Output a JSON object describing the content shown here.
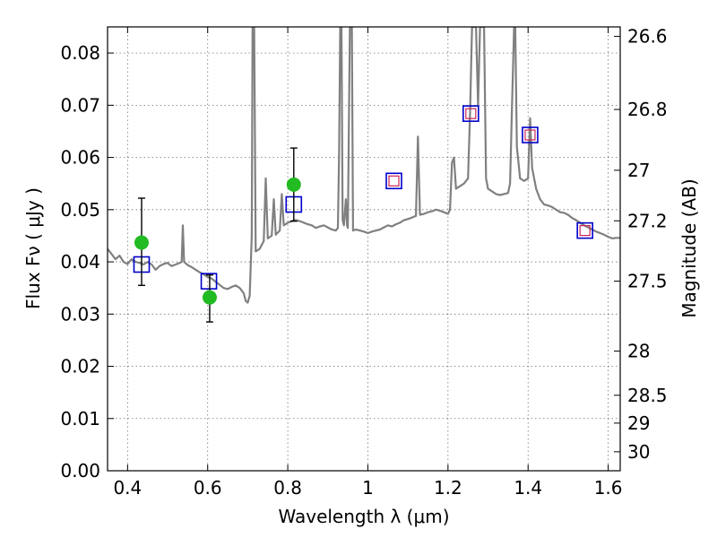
{
  "chart_data": {
    "type": "line",
    "xlabel": "Wavelength  λ (μm)",
    "ylabel": "Flux  Fν  ( μJy )",
    "y2label": "Magnitude (AB)",
    "xlim": [
      0.35,
      1.63
    ],
    "ylim": [
      0.0,
      0.085
    ],
    "grid": true,
    "x_ticks": [
      0.4,
      0.6,
      0.8,
      1.0,
      1.2,
      1.4,
      1.6
    ],
    "x_tick_labels": [
      "0.4",
      "0.6",
      "0.8",
      "1",
      "1.2",
      "1.4",
      "1.6"
    ],
    "y_ticks": [
      0.0,
      0.01,
      0.02,
      0.03,
      0.04,
      0.05,
      0.06,
      0.07,
      0.08
    ],
    "y_tick_labels": [
      "0.00",
      "0.01",
      "0.02",
      "0.03",
      "0.04",
      "0.05",
      "0.06",
      "0.07",
      "0.08"
    ],
    "y2_ticks": [
      26.6,
      26.8,
      27.0,
      27.2,
      27.5,
      28.0,
      28.5,
      29.0,
      30.0
    ],
    "y2_tick_labels": [
      "26.6",
      "26.8",
      "27",
      "27.2",
      "27.5",
      "28",
      "28.5",
      "29",
      "30"
    ],
    "series": [
      {
        "type": "line",
        "color": "#808080",
        "points": [
          [
            0.35,
            0.0425
          ],
          [
            0.36,
            0.0415
          ],
          [
            0.37,
            0.0405
          ],
          [
            0.38,
            0.0412
          ],
          [
            0.39,
            0.04
          ],
          [
            0.4,
            0.0396
          ],
          [
            0.41,
            0.0405
          ],
          [
            0.42,
            0.04
          ],
          [
            0.43,
            0.0398
          ],
          [
            0.44,
            0.0395
          ],
          [
            0.45,
            0.04
          ],
          [
            0.46,
            0.0395
          ],
          [
            0.47,
            0.0385
          ],
          [
            0.48,
            0.0392
          ],
          [
            0.49,
            0.0396
          ],
          [
            0.5,
            0.0398
          ],
          [
            0.51,
            0.0392
          ],
          [
            0.52,
            0.0395
          ],
          [
            0.53,
            0.0398
          ],
          [
            0.535,
            0.04
          ],
          [
            0.538,
            0.047
          ],
          [
            0.541,
            0.04
          ],
          [
            0.55,
            0.0394
          ],
          [
            0.56,
            0.039
          ],
          [
            0.57,
            0.0385
          ],
          [
            0.58,
            0.038
          ],
          [
            0.59,
            0.0376
          ],
          [
            0.6,
            0.0371
          ],
          [
            0.61,
            0.0368
          ],
          [
            0.62,
            0.0362
          ],
          [
            0.63,
            0.0356
          ],
          [
            0.64,
            0.035
          ],
          [
            0.65,
            0.0348
          ],
          [
            0.66,
            0.0352
          ],
          [
            0.67,
            0.0355
          ],
          [
            0.68,
            0.035
          ],
          [
            0.69,
            0.034
          ],
          [
            0.695,
            0.0325
          ],
          [
            0.7,
            0.0322
          ],
          [
            0.705,
            0.0335
          ],
          [
            0.71,
            0.045
          ],
          [
            0.712,
            0.085
          ],
          [
            0.716,
            0.085
          ],
          [
            0.72,
            0.042
          ],
          [
            0.73,
            0.0425
          ],
          [
            0.74,
            0.044
          ],
          [
            0.745,
            0.056
          ],
          [
            0.75,
            0.0445
          ],
          [
            0.76,
            0.045
          ],
          [
            0.765,
            0.052
          ],
          [
            0.77,
            0.0452
          ],
          [
            0.78,
            0.046
          ],
          [
            0.785,
            0.053
          ],
          [
            0.79,
            0.047
          ],
          [
            0.8,
            0.0475
          ],
          [
            0.81,
            0.0478
          ],
          [
            0.82,
            0.048
          ],
          [
            0.83,
            0.0478
          ],
          [
            0.84,
            0.0475
          ],
          [
            0.85,
            0.0472
          ],
          [
            0.86,
            0.047
          ],
          [
            0.87,
            0.0465
          ],
          [
            0.88,
            0.0468
          ],
          [
            0.89,
            0.047
          ],
          [
            0.9,
            0.0466
          ],
          [
            0.91,
            0.0462
          ],
          [
            0.92,
            0.046
          ],
          [
            0.925,
            0.0465
          ],
          [
            0.928,
            0.06
          ],
          [
            0.931,
            0.085
          ],
          [
            0.934,
            0.085
          ],
          [
            0.937,
            0.048
          ],
          [
            0.94,
            0.047
          ],
          [
            0.945,
            0.052
          ],
          [
            0.948,
            0.047
          ],
          [
            0.95,
            0.0465
          ],
          [
            0.955,
            0.085
          ],
          [
            0.96,
            0.085
          ],
          [
            0.963,
            0.046
          ],
          [
            0.97,
            0.0462
          ],
          [
            0.98,
            0.046
          ],
          [
            0.99,
            0.0458
          ],
          [
            1.0,
            0.0455
          ],
          [
            1.01,
            0.0458
          ],
          [
            1.02,
            0.046
          ],
          [
            1.03,
            0.0462
          ],
          [
            1.04,
            0.0466
          ],
          [
            1.05,
            0.047
          ],
          [
            1.06,
            0.0468
          ],
          [
            1.07,
            0.0472
          ],
          [
            1.08,
            0.0475
          ],
          [
            1.09,
            0.048
          ],
          [
            1.1,
            0.0482
          ],
          [
            1.11,
            0.0485
          ],
          [
            1.12,
            0.0488
          ],
          [
            1.125,
            0.064
          ],
          [
            1.13,
            0.049
          ],
          [
            1.14,
            0.0492
          ],
          [
            1.15,
            0.0495
          ],
          [
            1.16,
            0.0497
          ],
          [
            1.17,
            0.05
          ],
          [
            1.18,
            0.0498
          ],
          [
            1.19,
            0.0495
          ],
          [
            1.2,
            0.0492
          ],
          [
            1.205,
            0.05
          ],
          [
            1.21,
            0.059
          ],
          [
            1.215,
            0.06
          ],
          [
            1.22,
            0.054
          ],
          [
            1.23,
            0.0545
          ],
          [
            1.24,
            0.055
          ],
          [
            1.25,
            0.056
          ],
          [
            1.255,
            0.068
          ],
          [
            1.26,
            0.085
          ],
          [
            1.27,
            0.085
          ],
          [
            1.275,
            0.07
          ],
          [
            1.28,
            0.085
          ],
          [
            1.29,
            0.085
          ],
          [
            1.295,
            0.056
          ],
          [
            1.3,
            0.054
          ],
          [
            1.31,
            0.0535
          ],
          [
            1.32,
            0.053
          ],
          [
            1.33,
            0.0528
          ],
          [
            1.34,
            0.053
          ],
          [
            1.35,
            0.0532
          ],
          [
            1.355,
            0.055
          ],
          [
            1.36,
            0.07
          ],
          [
            1.365,
            0.085
          ],
          [
            1.368,
            0.085
          ],
          [
            1.372,
            0.062
          ],
          [
            1.38,
            0.056
          ],
          [
            1.39,
            0.0555
          ],
          [
            1.4,
            0.056
          ],
          [
            1.405,
            0.0675
          ],
          [
            1.41,
            0.058
          ],
          [
            1.42,
            0.054
          ],
          [
            1.43,
            0.052
          ],
          [
            1.44,
            0.051
          ],
          [
            1.45,
            0.0508
          ],
          [
            1.46,
            0.0505
          ],
          [
            1.47,
            0.05
          ],
          [
            1.48,
            0.0495
          ],
          [
            1.49,
            0.0494
          ],
          [
            1.5,
            0.049
          ],
          [
            1.51,
            0.0484
          ],
          [
            1.52,
            0.048
          ],
          [
            1.53,
            0.0475
          ],
          [
            1.54,
            0.047
          ],
          [
            1.55,
            0.0466
          ],
          [
            1.56,
            0.0462
          ],
          [
            1.57,
            0.0458
          ],
          [
            1.58,
            0.0455
          ],
          [
            1.59,
            0.0452
          ],
          [
            1.6,
            0.0448
          ],
          [
            1.61,
            0.0445
          ],
          [
            1.62,
            0.0446
          ],
          [
            1.63,
            0.0446
          ]
        ]
      },
      {
        "type": "scatter",
        "marker": "square",
        "color": "#0000cc",
        "points": [
          [
            0.435,
            0.0395
          ],
          [
            0.603,
            0.0363
          ],
          [
            0.815,
            0.051
          ],
          [
            1.065,
            0.0555
          ],
          [
            1.257,
            0.0684
          ],
          [
            1.405,
            0.0643
          ],
          [
            1.542,
            0.046
          ]
        ]
      },
      {
        "type": "scatter",
        "marker": "square",
        "color": "#cc2255",
        "points": [
          [
            1.065,
            0.0555
          ],
          [
            1.257,
            0.0684
          ],
          [
            1.405,
            0.0643
          ],
          [
            1.542,
            0.046
          ]
        ]
      },
      {
        "type": "errorbar",
        "marker": "circle",
        "color": "#22bb22",
        "errorbar_color": "#000000",
        "points": [
          [
            0.435,
            0.0437,
            0.0355,
            0.0522
          ],
          [
            0.605,
            0.0332,
            0.0285,
            0.0375
          ],
          [
            0.815,
            0.0548,
            0.0478,
            0.0618
          ]
        ]
      }
    ]
  }
}
